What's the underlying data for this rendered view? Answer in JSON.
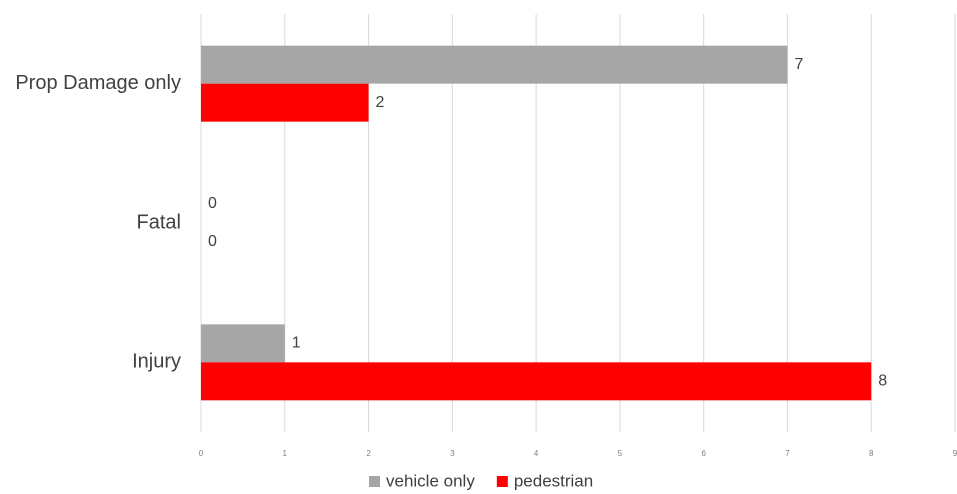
{
  "chart_data": {
    "type": "bar",
    "orientation": "horizontal",
    "categories": [
      "Prop Damage only",
      "Fatal",
      "Injury"
    ],
    "series": [
      {
        "name": "vehicle only",
        "values": [
          7,
          0,
          1
        ],
        "color": "#a6a6a6"
      },
      {
        "name": "pedestrian",
        "values": [
          2,
          0,
          8
        ],
        "color": "#ff0000"
      }
    ],
    "xlim": [
      0,
      9
    ],
    "x_ticks": [
      "0",
      "1",
      "2",
      "3",
      "4",
      "5",
      "6",
      "7",
      "8",
      "9"
    ],
    "grid": true,
    "legend": "bottom",
    "data_labels": true
  }
}
